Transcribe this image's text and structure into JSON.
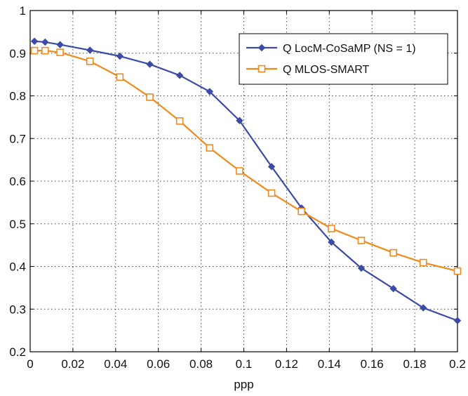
{
  "chart_data": {
    "type": "line",
    "title": "",
    "xlabel": "ppp",
    "ylabel": "",
    "xlim": [
      0,
      0.2
    ],
    "ylim": [
      0.2,
      1
    ],
    "xticks": [
      0,
      0.02,
      0.04,
      0.06,
      0.08,
      0.1,
      0.12,
      0.14,
      0.16,
      0.18,
      0.2
    ],
    "xtick_labels": [
      "0",
      "0.02",
      "0.04",
      "0.06",
      "0.08",
      "0.1",
      "0.12",
      "0.14",
      "0.16",
      "0.18",
      "0.2"
    ],
    "yticks": [
      0.2,
      0.3,
      0.4,
      0.5,
      0.6,
      0.7,
      0.8,
      0.9,
      1
    ],
    "ytick_labels": [
      "0.2",
      "0.3",
      "0.4",
      "0.5",
      "0.6",
      "0.7",
      "0.8",
      "0.9",
      "1"
    ],
    "grid": true,
    "legend_position": "top-right",
    "series": [
      {
        "name": "Q LocM-CoSaMP (NS = 1)",
        "color": "#3b4ba6",
        "marker": "diamond",
        "x": [
          0.002,
          0.007,
          0.014,
          0.028,
          0.042,
          0.056,
          0.07,
          0.084,
          0.098,
          0.113,
          0.127,
          0.141,
          0.155,
          0.17,
          0.184,
          0.2
        ],
        "y": [
          0.928,
          0.926,
          0.92,
          0.907,
          0.893,
          0.874,
          0.848,
          0.81,
          0.742,
          0.634,
          0.537,
          0.457,
          0.396,
          0.348,
          0.303,
          0.273
        ]
      },
      {
        "name": "Q MLOS-SMART",
        "color": "#f08a1c",
        "marker": "square",
        "x": [
          0.002,
          0.007,
          0.014,
          0.028,
          0.042,
          0.056,
          0.07,
          0.084,
          0.098,
          0.113,
          0.127,
          0.141,
          0.155,
          0.17,
          0.184,
          0.2
        ],
        "y": [
          0.906,
          0.906,
          0.902,
          0.881,
          0.844,
          0.797,
          0.741,
          0.678,
          0.624,
          0.572,
          0.529,
          0.489,
          0.461,
          0.432,
          0.409,
          0.389
        ]
      }
    ]
  }
}
